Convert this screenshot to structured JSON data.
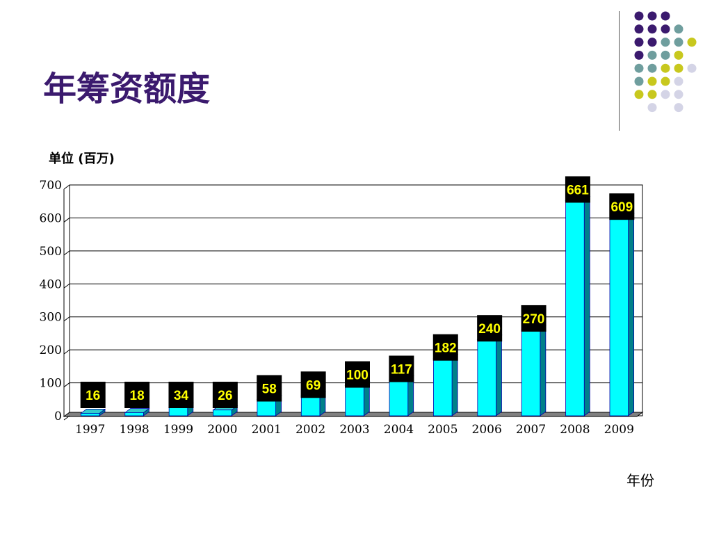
{
  "slide": {
    "title": "年筹资额度"
  },
  "chart_data": {
    "type": "bar",
    "title": "",
    "ylabel": "单位 (百万)",
    "xlabel": "年份",
    "categories": [
      "1997",
      "1998",
      "1999",
      "2000",
      "2001",
      "2002",
      "2003",
      "2004",
      "2005",
      "2006",
      "2007",
      "2008",
      "2009"
    ],
    "values": [
      16,
      18,
      34,
      26,
      58,
      69,
      100,
      117,
      182,
      240,
      270,
      661,
      609
    ],
    "ylim": [
      0,
      700
    ],
    "yticks": [
      0,
      100,
      200,
      300,
      400,
      500,
      600,
      700
    ],
    "grid": true,
    "legend": "none",
    "bar_color": "#00ffff",
    "label_bg": "#000000",
    "label_color": "#ffff00"
  },
  "colors": {
    "title": "#3b1a6e",
    "dot_purple": "#3b1a6e",
    "dot_teal": "#6f9e9e",
    "dot_yellow": "#c8c81e",
    "dot_lavender": "#d4d4e6"
  }
}
